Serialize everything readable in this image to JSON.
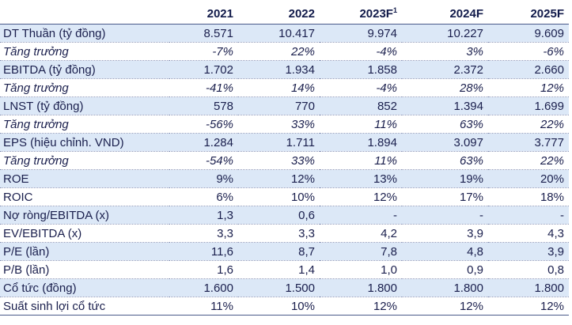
{
  "header": {
    "label": "",
    "years": [
      "2021",
      "2022",
      "2023F",
      "2024F",
      "2025F"
    ],
    "footnote_mark": "1"
  },
  "rows": [
    {
      "label": "DT Thuần (tỷ đồng)",
      "values": [
        "8.571",
        "10.417",
        "9.974",
        "10.227",
        "9.609"
      ]
    },
    {
      "label": "Tăng trưởng",
      "values": [
        "-7%",
        "22%",
        "-4%",
        "3%",
        "-6%"
      ]
    },
    {
      "label": "EBITDA (tỷ đồng)",
      "values": [
        "1.702",
        "1.934",
        "1.858",
        "2.372",
        "2.660"
      ]
    },
    {
      "label": "Tăng trưởng",
      "values": [
        "-41%",
        "14%",
        "-4%",
        "28%",
        "12%"
      ]
    },
    {
      "label": "LNST (tỷ đồng)",
      "values": [
        "578",
        "770",
        "852",
        "1.394",
        "1.699"
      ]
    },
    {
      "label": "Tăng trưởng",
      "values": [
        "-56%",
        "33%",
        "11%",
        "63%",
        "22%"
      ]
    },
    {
      "label": "EPS (hiệu chỉnh. VND)",
      "values": [
        "1.284",
        "1.711",
        "1.894",
        "3.097",
        "3.777"
      ]
    },
    {
      "label": "Tăng trưởng",
      "values": [
        "-54%",
        "33%",
        "11%",
        "63%",
        "22%"
      ]
    },
    {
      "label": "ROE",
      "values": [
        "9%",
        "12%",
        "13%",
        "19%",
        "20%"
      ]
    },
    {
      "label": "ROIC",
      "values": [
        "6%",
        "10%",
        "12%",
        "17%",
        "18%"
      ]
    },
    {
      "label": "Nợ ròng/EBITDA (x)",
      "values": [
        "1,3",
        "0,6",
        "-",
        "-",
        "-"
      ]
    },
    {
      "label": "EV/EBITDA (x)",
      "values": [
        "3,3",
        "3,3",
        "4,2",
        "3,9",
        "4,3"
      ]
    },
    {
      "label": "P/E (lần)",
      "values": [
        "11,6",
        "8,7",
        "7,8",
        "4,8",
        "3,9"
      ]
    },
    {
      "label": "P/B (lần)",
      "values": [
        "1,6",
        "1,4",
        "1,0",
        "0,9",
        "0,8"
      ]
    },
    {
      "label": "Cổ tức (đồng)",
      "values": [
        "1.600",
        "1.500",
        "1.800",
        "1.800",
        "1.800"
      ]
    },
    {
      "label": "Suất sinh lợi cổ tức",
      "values": [
        "11%",
        "10%",
        "12%",
        "12%",
        "12%"
      ]
    }
  ]
}
